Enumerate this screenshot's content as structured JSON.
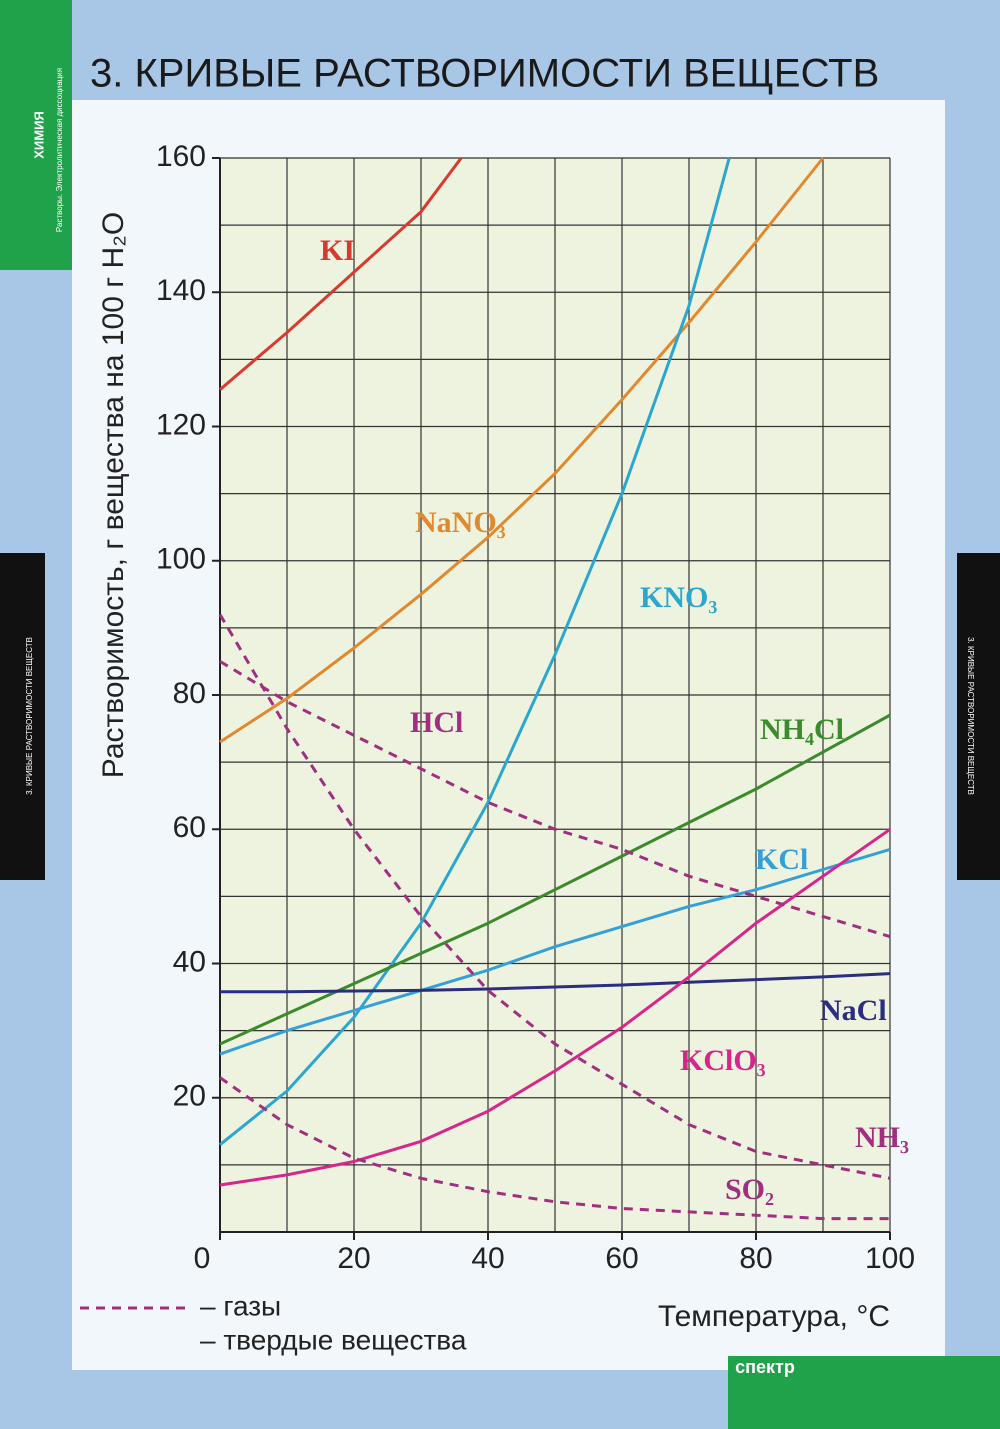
{
  "header": {
    "subject": "ХИМИЯ",
    "section": "Растворы. Электролитическая диссоциация",
    "side_title": "3. КРИВЫЕ РАСТВОРИМОСТИ ВЕЩЕСТВ",
    "publisher": "спектр"
  },
  "chart_data": {
    "type": "line",
    "title": "3. КРИВЫЕ РАСТВОРИМОСТИ ВЕЩЕСТВ",
    "y_label": "Растворимость, г вещества на 100 г H₂O",
    "x_label": "Температура, °C",
    "xlim": [
      0,
      100
    ],
    "ylim": [
      0,
      160
    ],
    "xticks": [
      0,
      20,
      40,
      60,
      80,
      100
    ],
    "yticks": [
      20,
      40,
      60,
      80,
      100,
      120,
      140,
      160
    ],
    "xgrid": [
      10,
      20,
      30,
      40,
      50,
      60,
      70,
      80,
      90,
      100
    ],
    "ygrid": [
      10,
      20,
      30,
      40,
      50,
      60,
      70,
      80,
      90,
      100,
      110,
      120,
      130,
      140,
      150,
      160
    ],
    "legend": [
      {
        "label": "– газы",
        "style": "dashed"
      },
      {
        "label": "– твердые вещества",
        "style": "solid"
      }
    ],
    "series": [
      {
        "name": "KI",
        "color": "#d93a2e",
        "dashed": false,
        "x": [
          0,
          10,
          20,
          30,
          36
        ],
        "values": [
          125.5,
          134,
          143,
          152,
          160
        ]
      },
      {
        "name": "NaNO₃",
        "color": "#e0892e",
        "dashed": false,
        "x": [
          0,
          10,
          20,
          30,
          40,
          50,
          60,
          70,
          80,
          90
        ],
        "values": [
          73,
          79.5,
          87,
          95,
          103.5,
          113,
          124,
          135.5,
          147.5,
          160
        ]
      },
      {
        "name": "KNO₃",
        "color": "#2ba6cf",
        "dashed": false,
        "x": [
          0,
          10,
          20,
          30,
          40,
          50,
          60,
          70,
          76
        ],
        "values": [
          13,
          21,
          32,
          46,
          64,
          86,
          110,
          138,
          160
        ]
      },
      {
        "name": "NH₄Cl",
        "color": "#3b8a2c",
        "dashed": false,
        "x": [
          0,
          10,
          20,
          30,
          40,
          50,
          60,
          70,
          80,
          90,
          100
        ],
        "values": [
          28,
          32.5,
          37,
          41.5,
          46,
          51,
          56,
          61,
          66,
          71.5,
          77
        ]
      },
      {
        "name": "KCl",
        "color": "#35a0d8",
        "dashed": false,
        "x": [
          0,
          10,
          20,
          30,
          40,
          50,
          60,
          70,
          80,
          90,
          100
        ],
        "values": [
          26.5,
          30,
          33,
          36,
          39,
          42.5,
          45.5,
          48.5,
          51,
          54,
          57
        ]
      },
      {
        "name": "NaCl",
        "color": "#2b2d80",
        "dashed": false,
        "x": [
          0,
          10,
          20,
          30,
          40,
          50,
          60,
          70,
          80,
          90,
          100
        ],
        "values": [
          35.8,
          35.8,
          35.9,
          36,
          36.2,
          36.5,
          36.8,
          37.2,
          37.6,
          38,
          38.5
        ]
      },
      {
        "name": "KClO₃",
        "color": "#d6268c",
        "dashed": false,
        "x": [
          0,
          10,
          20,
          30,
          40,
          50,
          60,
          70,
          80,
          90,
          100
        ],
        "values": [
          7,
          8.5,
          10.5,
          13.5,
          18,
          24,
          30.5,
          38,
          46,
          53,
          60
        ]
      },
      {
        "name": "HCl",
        "color": "#a0307f",
        "dashed": true,
        "x": [
          0,
          10,
          20,
          30,
          40,
          50,
          60,
          70,
          80,
          90,
          100
        ],
        "values": [
          85,
          79,
          74,
          69,
          64,
          60,
          57,
          53,
          50,
          47,
          44
        ]
      },
      {
        "name": "NH₃",
        "color": "#a0307f",
        "dashed": true,
        "x": [
          0,
          10,
          20,
          30,
          40,
          50,
          60,
          70,
          80,
          90,
          100
        ],
        "values": [
          92,
          75,
          60,
          47,
          36,
          28,
          22,
          16,
          12,
          10,
          8
        ]
      },
      {
        "name": "SO₂",
        "color": "#a0307f",
        "dashed": true,
        "x": [
          0,
          10,
          20,
          30,
          40,
          50,
          60,
          70,
          80,
          90,
          100
        ],
        "values": [
          23,
          16,
          11,
          8,
          6,
          4.5,
          3.5,
          3,
          2.5,
          2,
          2
        ]
      }
    ]
  }
}
